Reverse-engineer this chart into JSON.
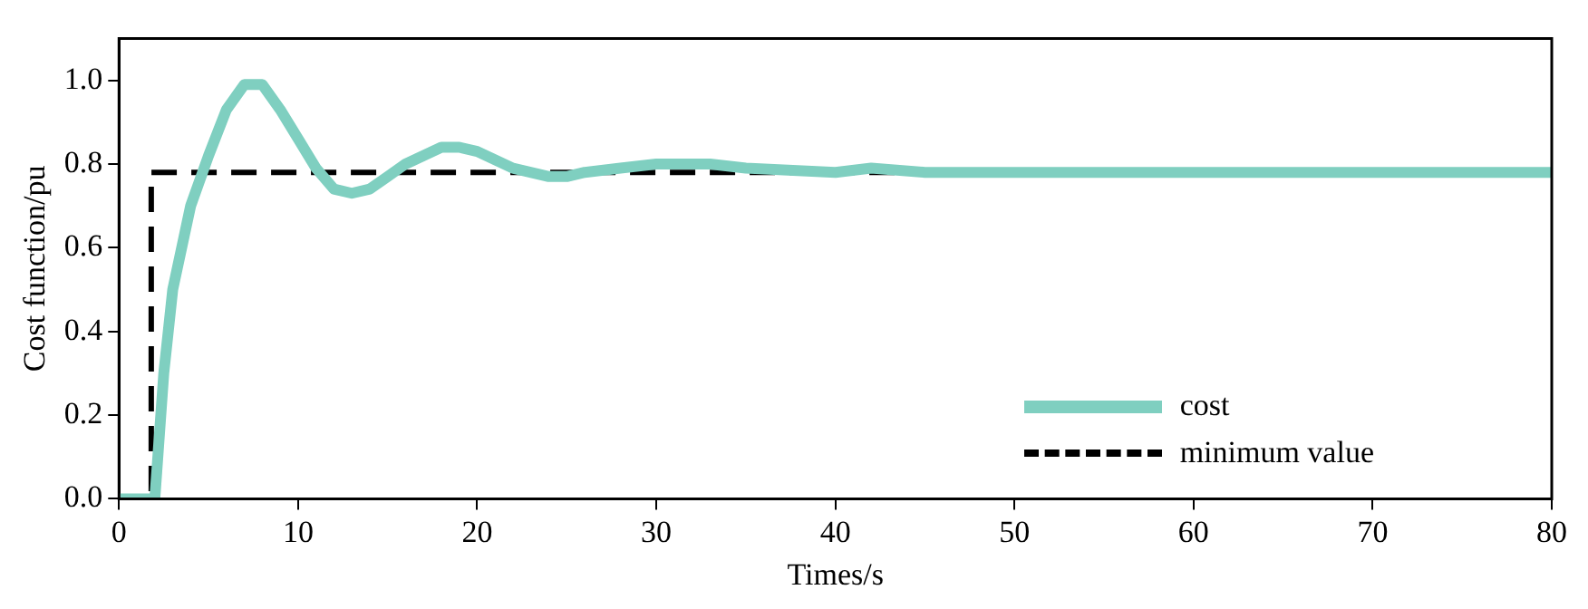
{
  "chart_data": {
    "type": "line",
    "xlabel": "Times/s",
    "ylabel": "Cost function/pu",
    "xlim": [
      0,
      80
    ],
    "xticks": [
      0,
      10,
      20,
      30,
      40,
      50,
      60,
      70,
      80
    ],
    "ylim": [
      0,
      1.1
    ],
    "yticks": [
      {
        "value": 0,
        "label": "0.0"
      },
      0.2,
      0.4,
      0.6,
      0.8,
      {
        "value": 1,
        "label": "1.0"
      }
    ],
    "grid": false,
    "legend": "bottom right",
    "marker": "none",
    "series": [
      {
        "name": "cost",
        "color": "#7fcfc0",
        "line_style": "solid",
        "x": [
          0,
          2,
          2.5,
          3,
          4,
          5,
          6,
          7,
          8,
          9,
          10,
          11,
          12,
          13,
          14,
          15,
          16,
          17,
          18,
          19,
          20,
          21,
          22,
          24,
          25,
          26,
          28,
          30,
          33,
          35,
          40,
          42,
          45,
          80
        ],
        "values": [
          0,
          0,
          0.3,
          0.5,
          0.7,
          0.82,
          0.93,
          0.99,
          0.99,
          0.93,
          0.86,
          0.79,
          0.74,
          0.73,
          0.74,
          0.77,
          0.8,
          0.82,
          0.84,
          0.84,
          0.83,
          0.81,
          0.79,
          0.77,
          0.77,
          0.78,
          0.79,
          0.8,
          0.8,
          0.79,
          0.78,
          0.79,
          0.78,
          0.78
        ]
      },
      {
        "name": "minimum value",
        "color": "#000000",
        "line_style": "dashed",
        "x": [
          0,
          1.8,
          1.8,
          80
        ],
        "values": [
          0,
          0,
          0.78,
          0.78
        ]
      }
    ]
  }
}
